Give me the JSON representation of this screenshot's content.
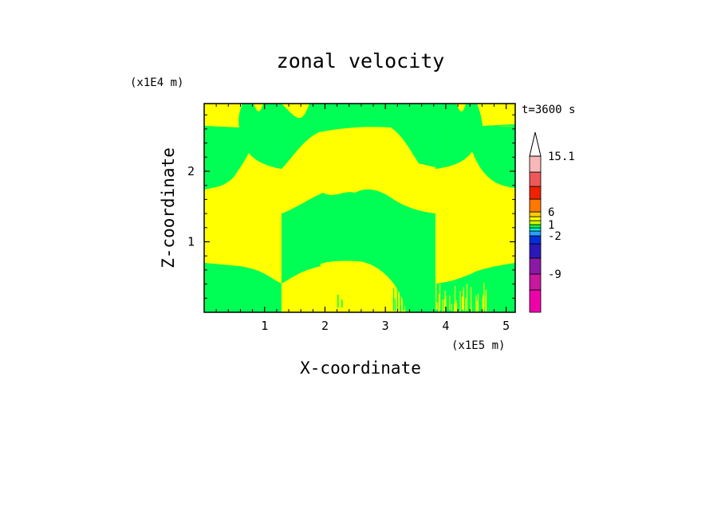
{
  "chart_data": {
    "type": "heatmap",
    "title": "zonal velocity",
    "xlabel": "X-coordinate",
    "ylabel": "Z-coordinate",
    "x_unit": "(x1E5 m)",
    "y_unit": "(x1E4 m)",
    "time_label": "t=3600 s",
    "xlim": [
      0,
      5.15
    ],
    "ylim": [
      0,
      2.96
    ],
    "x_ticks": [
      1,
      2,
      3,
      4,
      5
    ],
    "y_ticks": [
      1,
      2
    ],
    "x_tick_labels": [
      "1",
      "2",
      "3",
      "4",
      "5"
    ],
    "y_tick_labels": [
      "1",
      "2"
    ],
    "colorbar": {
      "levels_bottom_to_top": [
        -15,
        -12,
        -9,
        -6,
        -3,
        -2,
        -1,
        0,
        1,
        2,
        3,
        6,
        9,
        12,
        15.1
      ],
      "colors_bottom_to_top": [
        "#ee00aa",
        "#c8189e",
        "#8a1aa6",
        "#2a18b8",
        "#0030d8",
        "#2aa0ff",
        "#00eecc",
        "#00ff55",
        "#ccff00",
        "#ffff00",
        "#ffcc00",
        "#ff7800",
        "#ee2200",
        "#f05858",
        "#f8b8b8"
      ],
      "labels": [
        "15.1",
        "6",
        "1",
        "-2",
        "-9"
      ],
      "extend_top": true
    },
    "regions": {
      "description_colors": {
        "positive": "#ffff00",
        "negative": "#00ff55"
      },
      "x_splits": [
        1.28,
        3.83
      ]
    }
  }
}
